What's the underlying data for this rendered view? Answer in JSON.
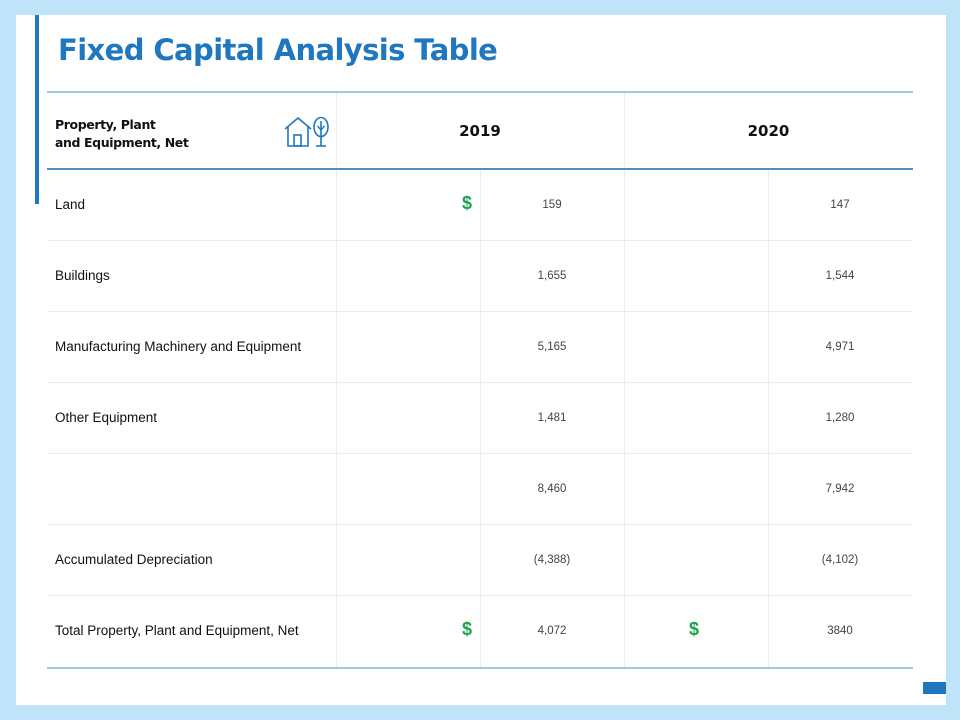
{
  "title": "Fixed Capital Analysis Table",
  "colors": {
    "accent": "#1f77c0",
    "dollar": "#1aa34a",
    "background": "#bfe3f8"
  },
  "table": {
    "header": {
      "label_line1": "Property, Plant",
      "label_line2": "and Equipment, Net",
      "icon": "house-tree-icon",
      "years": [
        "2019",
        "2020"
      ]
    },
    "rows": [
      {
        "label": "Land",
        "v2019": "159",
        "v2020": "147",
        "dollar2019": "$",
        "dollar2020": ""
      },
      {
        "label": "Buildings",
        "v2019": "1,655",
        "v2020": "1,544",
        "dollar2019": "",
        "dollar2020": ""
      },
      {
        "label": "Manufacturing Machinery and Equipment",
        "v2019": "5,165",
        "v2020": "4,971",
        "dollar2019": "",
        "dollar2020": ""
      },
      {
        "label": "Other Equipment",
        "v2019": "1,481",
        "v2020": "1,280",
        "dollar2019": "",
        "dollar2020": ""
      },
      {
        "label": "",
        "v2019": "8,460",
        "v2020": "7,942",
        "dollar2019": "",
        "dollar2020": ""
      },
      {
        "label": "Accumulated Depreciation",
        "v2019": "(4,388)",
        "v2020": "(4,102)",
        "dollar2019": "",
        "dollar2020": ""
      },
      {
        "label": "Total Property, Plant and Equipment, Net",
        "v2019": "4,072",
        "v2020": "3840",
        "dollar2019": "$",
        "dollar2020": "$"
      }
    ]
  }
}
